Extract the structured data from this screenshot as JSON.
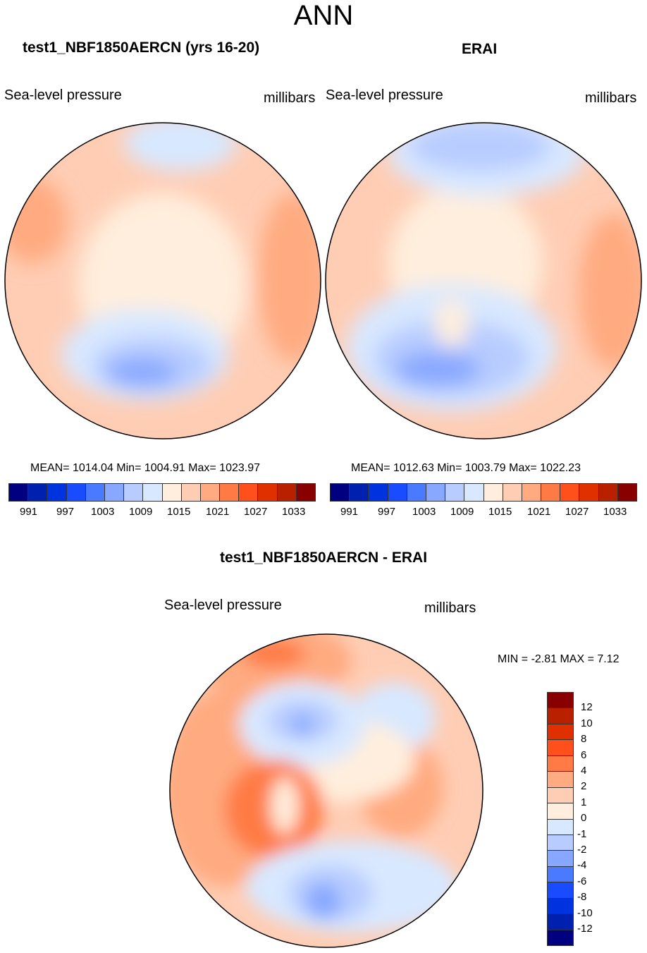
{
  "title": "ANN",
  "panels": [
    {
      "title": "test1_NBF1850AERCN (yrs 16-20)",
      "left_label": "Sea-level pressure",
      "right_label": "millibars",
      "stats": "MEAN= 1014.04  Min= 1004.91  Max= 1023.97"
    },
    {
      "title": "ERAI",
      "left_label": "Sea-level pressure",
      "right_label": "millibars",
      "stats": "MEAN= 1012.63  Min= 1003.79  Max= 1022.23"
    },
    {
      "title": "test1_NBF1850AERCN - ERAI",
      "left_label": "Sea-level pressure",
      "right_label": "millibars",
      "stats": "MIN =  -2.81 MAX =   7.12"
    }
  ],
  "chart_data": [
    {
      "type": "heatmap",
      "projection": "north polar stereographic",
      "title": "test1_NBF1850AERCN (yrs 16-20)",
      "variable": "Sea-level pressure",
      "units": "millibars",
      "mean": 1014.04,
      "min": 1004.91,
      "max": 1023.97,
      "colorbar_tick_labels": [
        "991",
        "997",
        "1003",
        "1009",
        "1015",
        "1021",
        "1027",
        "1033"
      ]
    },
    {
      "type": "heatmap",
      "projection": "north polar stereographic",
      "title": "ERAI",
      "variable": "Sea-level pressure",
      "units": "millibars",
      "mean": 1012.63,
      "min": 1003.79,
      "max": 1022.23,
      "colorbar_tick_labels": [
        "991",
        "997",
        "1003",
        "1009",
        "1015",
        "1021",
        "1027",
        "1033"
      ]
    },
    {
      "type": "heatmap",
      "projection": "north polar stereographic",
      "title": "test1_NBF1850AERCN - ERAI",
      "variable": "Sea-level pressure",
      "units": "millibars",
      "min": -2.81,
      "max": 7.12,
      "colorbar_tick_labels": [
        "12",
        "10",
        "8",
        "6",
        "4",
        "2",
        "1",
        "0",
        "-1",
        "-2",
        "-4",
        "-6",
        "-8",
        "-10",
        "-12"
      ]
    }
  ],
  "colors": {
    "palette": [
      "#000080",
      "#0020b0",
      "#0033e0",
      "#1a4cff",
      "#4a7aff",
      "#88a8ff",
      "#b8ccff",
      "#d8e8ff",
      "#ffeedd",
      "#ffcdb4",
      "#ffaa80",
      "#ff7a45",
      "#ff4f1a",
      "#e03000",
      "#b82000",
      "#880000"
    ]
  }
}
